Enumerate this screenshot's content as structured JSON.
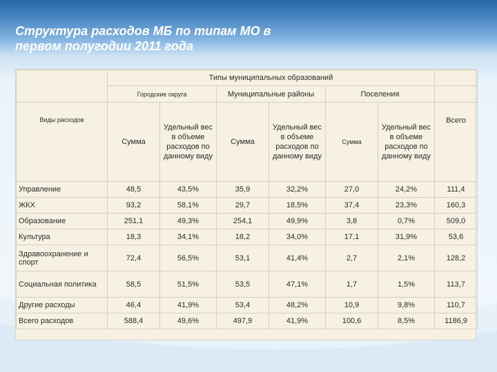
{
  "title": {
    "line1": "Структура расходов МБ по типам МО в",
    "line2": "первом полугодии 2011 года"
  },
  "table": {
    "group_header": "Типы муниципальных образований",
    "types": [
      "Городские округа",
      "Муниципальные районы",
      "Поселения"
    ],
    "row_header": "Виды расходов",
    "col_sum": "Сумма",
    "col_share": "Удельный вес в объеме расходов по данному виду",
    "col_total": "Всего",
    "rows": [
      {
        "label": "Управление",
        "cells": [
          "48,5",
          "43,5%",
          "35,9",
          "32,2%",
          "27,0",
          "24,2%",
          "111,4"
        ]
      },
      {
        "label": "ЖКХ",
        "cells": [
          "93,2",
          "58,1%",
          "29,7",
          "18,5%",
          "37,4",
          "23,3%",
          "160,3"
        ]
      },
      {
        "label": "Образование",
        "cells": [
          "251,1",
          "49,3%",
          "254,1",
          "49,9%",
          "3,8",
          "0,7%",
          "509,0"
        ]
      },
      {
        "label": "Культура",
        "cells": [
          "18,3",
          "34,1%",
          "18,2",
          "34,0%",
          "17,1",
          "31,9%",
          "53,6"
        ]
      },
      {
        "label": "Здравоохранение и спорт",
        "cells": [
          "72,4",
          "56,5%",
          "53,1",
          "41,4%",
          "2,7",
          "2,1%",
          "128,2"
        ]
      },
      {
        "label": "Социальная политика",
        "cells": [
          "58,5",
          "51,5%",
          "53,5",
          "47,1%",
          "1,7",
          "1,5%",
          "113,7"
        ]
      },
      {
        "label": "Другие расходы",
        "cells": [
          "46,4",
          "41,9%",
          "53,4",
          "48,2%",
          "10,9",
          "9,8%",
          "110,7"
        ]
      },
      {
        "label": "Всего расходов",
        "cells": [
          "588,4",
          "49,6%",
          "497,9",
          "41,9%",
          "100,6",
          "8,5%",
          "1186,9"
        ]
      }
    ]
  }
}
